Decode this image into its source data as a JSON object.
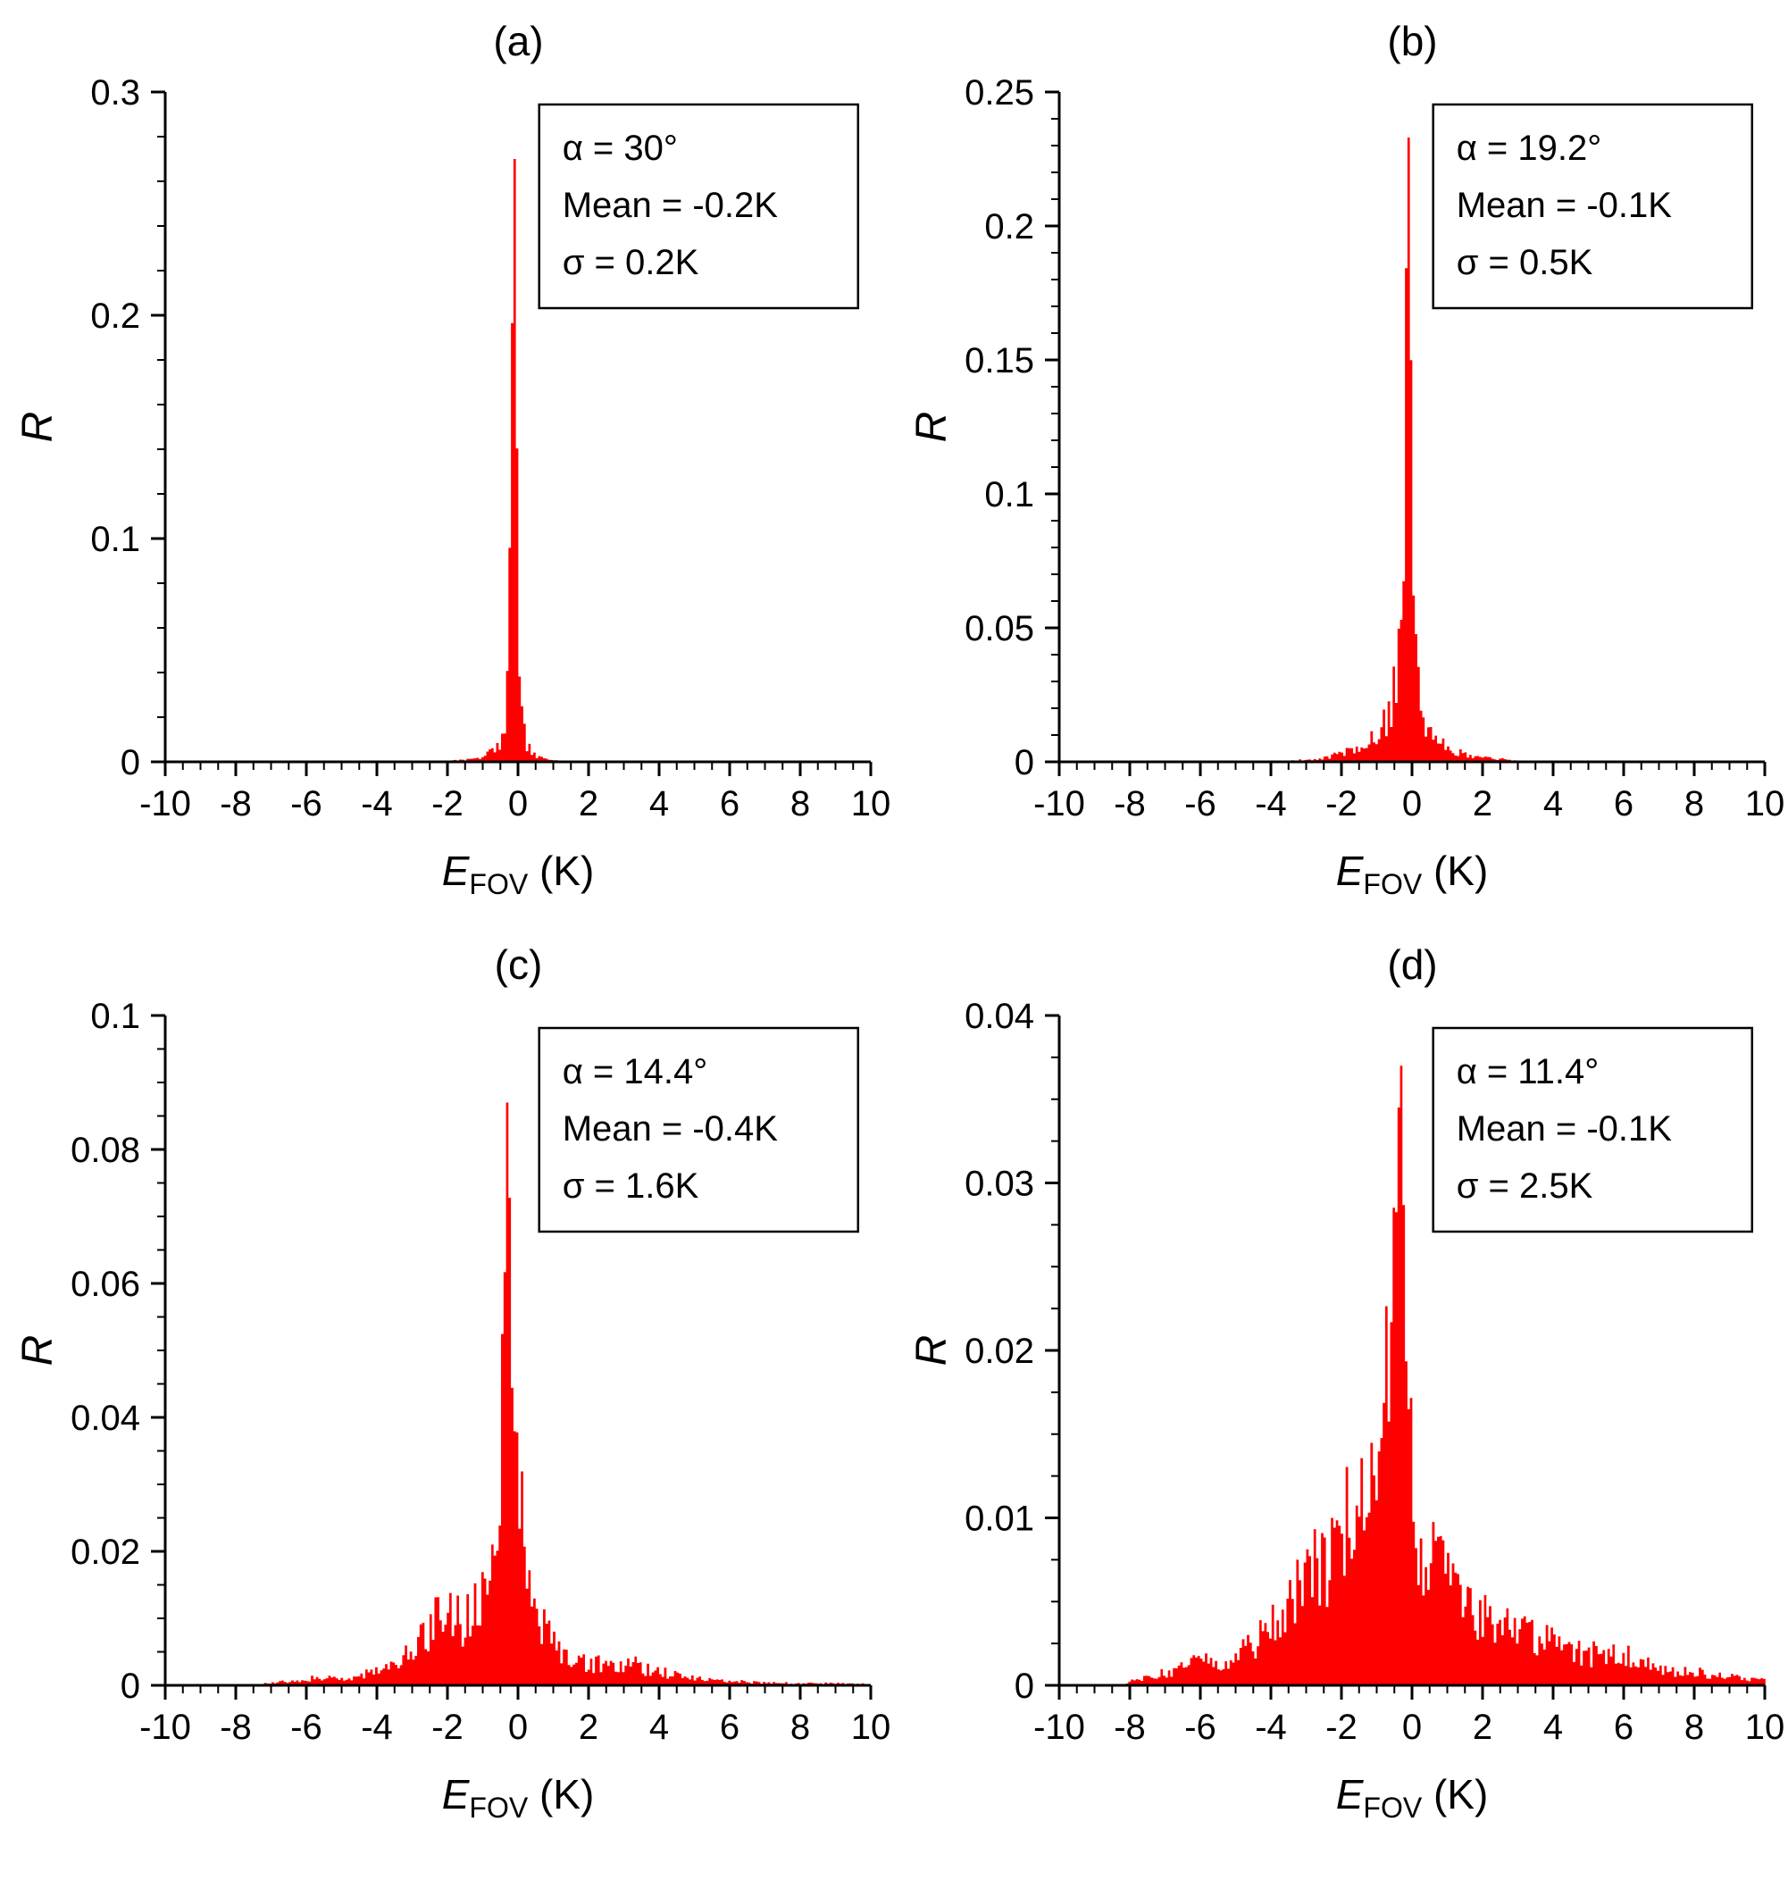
{
  "figure": {
    "xlabel": {
      "main": "E",
      "sub": "FOV",
      "unit": " (K)"
    },
    "ylabel": "R",
    "bar_color": "#ff0000",
    "axis_color": "#000000",
    "annotation_border": "#000000",
    "annotation_bg": "#ffffff"
  },
  "chart_data": [
    {
      "type": "histogram",
      "label": "(a)",
      "annotation": {
        "alpha": "α = 30°",
        "mean": "Mean = -0.2K",
        "sigma": "σ = 0.2K"
      },
      "xlim": [
        -10,
        10
      ],
      "ylim": [
        0,
        0.3
      ],
      "xticks": [
        -10,
        -8,
        -6,
        -4,
        -2,
        0,
        2,
        4,
        6,
        8,
        10
      ],
      "yticks": [
        0,
        0.1,
        0.2,
        0.3
      ],
      "ytick_labels": [
        "0",
        "0.1",
        "0.2",
        "0.3"
      ],
      "x_minor_step": 0.5,
      "y_minor_step": 0.02,
      "peak": 0.27,
      "bin_width": 0.07,
      "envelope": [
        [
          -2.2,
          0
        ],
        [
          -2,
          0.0004
        ],
        [
          -1.6,
          0.0008
        ],
        [
          -1.2,
          0.0015
        ],
        [
          -0.9,
          0.003
        ],
        [
          -0.7,
          0.005
        ],
        [
          -0.5,
          0.009
        ],
        [
          -0.38,
          0.015
        ],
        [
          -0.3,
          0.03
        ],
        [
          -0.24,
          0.07
        ],
        [
          -0.18,
          0.14
        ],
        [
          -0.12,
          0.27
        ],
        [
          -0.06,
          0.17
        ],
        [
          0,
          0.07
        ],
        [
          0.06,
          0.03
        ],
        [
          0.15,
          0.014
        ],
        [
          0.25,
          0.008
        ],
        [
          0.4,
          0.004
        ],
        [
          0.6,
          0.002
        ],
        [
          0.9,
          0.001
        ],
        [
          1.3,
          0.0005
        ],
        [
          1.6,
          0
        ]
      ]
    },
    {
      "type": "histogram",
      "label": "(b)",
      "annotation": {
        "alpha": "α = 19.2°",
        "mean": "Mean = -0.1K",
        "sigma": "σ = 0.5K"
      },
      "xlim": [
        -10,
        10
      ],
      "ylim": [
        0,
        0.25
      ],
      "xticks": [
        -10,
        -8,
        -6,
        -4,
        -2,
        0,
        2,
        4,
        6,
        8,
        10
      ],
      "yticks": [
        0,
        0.05,
        0.1,
        0.15,
        0.2,
        0.25
      ],
      "ytick_labels": [
        "0",
        "0.05",
        "0.1",
        "0.15",
        "0.2",
        "0.25"
      ],
      "x_minor_step": 0.5,
      "y_minor_step": 0.01,
      "peak": 0.233,
      "bin_width": 0.07,
      "envelope": [
        [
          -4,
          0
        ],
        [
          -3.5,
          0.0004
        ],
        [
          -3,
          0.0008
        ],
        [
          -2.5,
          0.0015
        ],
        [
          -2,
          0.003
        ],
        [
          -1.6,
          0.005
        ],
        [
          -1.3,
          0.007
        ],
        [
          -1,
          0.01
        ],
        [
          -0.8,
          0.014
        ],
        [
          -0.6,
          0.02
        ],
        [
          -0.45,
          0.03
        ],
        [
          -0.32,
          0.05
        ],
        [
          -0.22,
          0.1
        ],
        [
          -0.14,
          0.18
        ],
        [
          -0.08,
          0.233
        ],
        [
          -0.02,
          0.15
        ],
        [
          0.05,
          0.08
        ],
        [
          0.12,
          0.045
        ],
        [
          0.2,
          0.028
        ],
        [
          0.3,
          0.02
        ],
        [
          0.45,
          0.014
        ],
        [
          0.6,
          0.01
        ],
        [
          0.8,
          0.007
        ],
        [
          1,
          0.005
        ],
        [
          1.3,
          0.0035
        ],
        [
          1.6,
          0.0025
        ],
        [
          2,
          0.0018
        ],
        [
          2.4,
          0.0012
        ],
        [
          2.8,
          0.0006
        ],
        [
          3.2,
          0
        ]
      ]
    },
    {
      "type": "histogram",
      "label": "(c)",
      "annotation": {
        "alpha": "α = 14.4°",
        "mean": "Mean = -0.4K",
        "sigma": "σ = 1.6K"
      },
      "xlim": [
        -10,
        10
      ],
      "ylim": [
        0,
        0.1
      ],
      "xticks": [
        -10,
        -8,
        -6,
        -4,
        -2,
        0,
        2,
        4,
        6,
        8,
        10
      ],
      "yticks": [
        0,
        0.02,
        0.04,
        0.06,
        0.08,
        0.1
      ],
      "ytick_labels": [
        "0",
        "0.02",
        "0.04",
        "0.06",
        "0.08",
        "0.1"
      ],
      "x_minor_step": 0.5,
      "y_minor_step": 0.005,
      "peak": 0.087,
      "bin_width": 0.07,
      "envelope": [
        [
          -7.5,
          0
        ],
        [
          -7,
          0.0004
        ],
        [
          -6.5,
          0.0006
        ],
        [
          -6,
          0.0009
        ],
        [
          -5.5,
          0.0012
        ],
        [
          -5,
          0.001
        ],
        [
          -4.5,
          0.0015
        ],
        [
          -4,
          0.002
        ],
        [
          -3.6,
          0.003
        ],
        [
          -3.2,
          0.004
        ],
        [
          -2.9,
          0.006
        ],
        [
          -2.6,
          0.007
        ],
        [
          -2.3,
          0.01
        ],
        [
          -2,
          0.012
        ],
        [
          -1.8,
          0.011
        ],
        [
          -1.6,
          0.009
        ],
        [
          -1.4,
          0.01
        ],
        [
          -1.2,
          0.012
        ],
        [
          -1,
          0.014
        ],
        [
          -0.85,
          0.017
        ],
        [
          -0.7,
          0.022
        ],
        [
          -0.55,
          0.03
        ],
        [
          -0.45,
          0.04
        ],
        [
          -0.35,
          0.06
        ],
        [
          -0.28,
          0.087
        ],
        [
          -0.2,
          0.065
        ],
        [
          -0.12,
          0.04
        ],
        [
          -0.05,
          0.03
        ],
        [
          0.05,
          0.026
        ],
        [
          0.2,
          0.022
        ],
        [
          0.35,
          0.018
        ],
        [
          0.5,
          0.013
        ],
        [
          0.7,
          0.01
        ],
        [
          0.9,
          0.008
        ],
        [
          1.1,
          0.006
        ],
        [
          1.4,
          0.0045
        ],
        [
          1.7,
          0.0035
        ],
        [
          2,
          0.003
        ],
        [
          2.4,
          0.0035
        ],
        [
          2.8,
          0.003
        ],
        [
          3.2,
          0.0035
        ],
        [
          3.6,
          0.0025
        ],
        [
          4,
          0.002
        ],
        [
          4.5,
          0.0015
        ],
        [
          5,
          0.001
        ],
        [
          5.5,
          0.0009
        ],
        [
          6,
          0.0007
        ],
        [
          6.5,
          0.0005
        ],
        [
          7,
          0.0004
        ],
        [
          8,
          0.0003
        ],
        [
          9,
          0.0003
        ],
        [
          9.8,
          0.0002
        ],
        [
          10,
          0
        ]
      ]
    },
    {
      "type": "histogram",
      "label": "(d)",
      "annotation": {
        "alpha": "α = 11.4°",
        "mean": "Mean = -0.1K",
        "sigma": "σ = 2.5K"
      },
      "xlim": [
        -10,
        10
      ],
      "ylim": [
        0,
        0.04
      ],
      "xticks": [
        -10,
        -8,
        -6,
        -4,
        -2,
        0,
        2,
        4,
        6,
        8,
        10
      ],
      "yticks": [
        0,
        0.01,
        0.02,
        0.03,
        0.04
      ],
      "ytick_labels": [
        "0",
        "0.01",
        "0.02",
        "0.03",
        "0.04"
      ],
      "x_minor_step": 0.5,
      "y_minor_step": 0.0025,
      "peak": 0.037,
      "bin_width": 0.07,
      "envelope": [
        [
          -8.2,
          0
        ],
        [
          -8,
          0.0003
        ],
        [
          -7.5,
          0.0005
        ],
        [
          -7,
          0.0008
        ],
        [
          -6.5,
          0.001
        ],
        [
          -6,
          0.0014
        ],
        [
          -5.5,
          0.0013
        ],
        [
          -5,
          0.0018
        ],
        [
          -4.6,
          0.0025
        ],
        [
          -4.2,
          0.003
        ],
        [
          -3.8,
          0.004
        ],
        [
          -3.4,
          0.0055
        ],
        [
          -3,
          0.006
        ],
        [
          -2.7,
          0.007
        ],
        [
          -2.4,
          0.0075
        ],
        [
          -2.1,
          0.008
        ],
        [
          -1.8,
          0.01
        ],
        [
          -1.5,
          0.012
        ],
        [
          -1.3,
          0.014
        ],
        [
          -1.1,
          0.012
        ],
        [
          -0.95,
          0.013
        ],
        [
          -0.8,
          0.016
        ],
        [
          -0.65,
          0.02
        ],
        [
          -0.5,
          0.026
        ],
        [
          -0.4,
          0.031
        ],
        [
          -0.3,
          0.037
        ],
        [
          -0.22,
          0.028
        ],
        [
          -0.15,
          0.022
        ],
        [
          -0.08,
          0.017
        ],
        [
          0,
          0.013
        ],
        [
          0.1,
          0.009
        ],
        [
          0.2,
          0.007
        ],
        [
          0.35,
          0.0075
        ],
        [
          0.5,
          0.008
        ],
        [
          0.65,
          0.0075
        ],
        [
          0.8,
          0.007
        ],
        [
          1,
          0.006
        ],
        [
          1.2,
          0.0055
        ],
        [
          1.5,
          0.005
        ],
        [
          1.8,
          0.0045
        ],
        [
          2.1,
          0.004
        ],
        [
          2.5,
          0.0038
        ],
        [
          2.9,
          0.0033
        ],
        [
          3.3,
          0.003
        ],
        [
          3.7,
          0.0027
        ],
        [
          4.1,
          0.0023
        ],
        [
          4.5,
          0.002
        ],
        [
          5,
          0.0018
        ],
        [
          5.5,
          0.002
        ],
        [
          6,
          0.0018
        ],
        [
          6.5,
          0.0013
        ],
        [
          7,
          0.001
        ],
        [
          7.5,
          0.0009
        ],
        [
          8,
          0.0008
        ],
        [
          8.5,
          0.0006
        ],
        [
          9,
          0.0005
        ],
        [
          9.5,
          0.0004
        ],
        [
          10,
          0.0003
        ]
      ]
    }
  ]
}
